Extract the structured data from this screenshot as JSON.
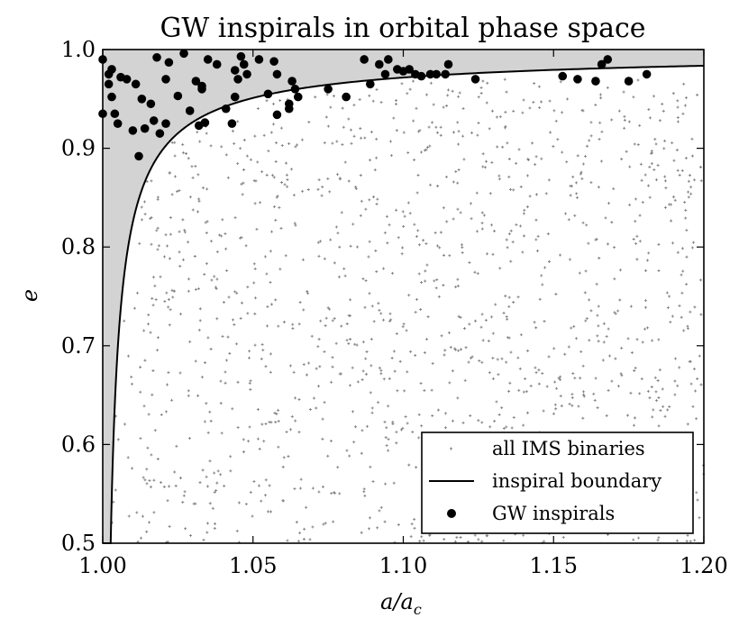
{
  "chart_data": {
    "type": "scatter",
    "title": "GW inspirals in orbital phase space",
    "xlabel": "a/a",
    "xlabel_sub": "c",
    "ylabel": "e",
    "xlim": [
      1.0,
      1.2
    ],
    "ylim": [
      0.5,
      1.0
    ],
    "xticks": [
      "1.00",
      "1.05",
      "1.10",
      "1.15",
      "1.20"
    ],
    "yticks": [
      "0.5",
      "0.6",
      "0.7",
      "0.8",
      "0.9",
      "1.0"
    ],
    "legend_position": "lower-right",
    "colors": {
      "ims": "#808080",
      "boundary": "#000000",
      "gw": "#000000",
      "shade": "#d3d3d3"
    },
    "series": [
      {
        "name": "all IMS binaries",
        "kind": "scatter-small",
        "count_approx": 1400,
        "x_range": [
          1.0,
          1.2
        ],
        "y_range": [
          0.5,
          0.97
        ]
      },
      {
        "name": "inspiral boundary",
        "kind": "line",
        "formula": "e = 1 - 0.0046/(x-1)^0.79",
        "x_start": 1.0001
      },
      {
        "name": "GW inspirals",
        "kind": "scatter-large",
        "points": [
          [
            1.0,
            0.99
          ],
          [
            1.0,
            0.935
          ],
          [
            1.002,
            0.965
          ],
          [
            1.002,
            0.975
          ],
          [
            1.003,
            0.98
          ],
          [
            1.003,
            0.952
          ],
          [
            1.004,
            0.935
          ],
          [
            1.005,
            0.925
          ],
          [
            1.006,
            0.972
          ],
          [
            1.008,
            0.97
          ],
          [
            1.01,
            0.918
          ],
          [
            1.011,
            0.965
          ],
          [
            1.012,
            0.892
          ],
          [
            1.013,
            0.95
          ],
          [
            1.014,
            0.92
          ],
          [
            1.016,
            0.945
          ],
          [
            1.017,
            0.928
          ],
          [
            1.018,
            0.992
          ],
          [
            1.019,
            0.915
          ],
          [
            1.021,
            0.97
          ],
          [
            1.021,
            0.925
          ],
          [
            1.022,
            0.987
          ],
          [
            1.025,
            0.953
          ],
          [
            1.027,
            0.996
          ],
          [
            1.029,
            0.938
          ],
          [
            1.031,
            0.968
          ],
          [
            1.032,
            0.923
          ],
          [
            1.033,
            0.963
          ],
          [
            1.033,
            0.96
          ],
          [
            1.034,
            0.926
          ],
          [
            1.035,
            0.99
          ],
          [
            1.038,
            0.985
          ],
          [
            1.041,
            0.94
          ],
          [
            1.043,
            0.925
          ],
          [
            1.044,
            0.952
          ],
          [
            1.044,
            0.979
          ],
          [
            1.045,
            0.97
          ],
          [
            1.046,
            0.993
          ],
          [
            1.047,
            0.985
          ],
          [
            1.048,
            0.975
          ],
          [
            1.052,
            0.99
          ],
          [
            1.055,
            0.955
          ],
          [
            1.057,
            0.988
          ],
          [
            1.058,
            0.975
          ],
          [
            1.058,
            0.934
          ],
          [
            1.062,
            0.94
          ],
          [
            1.062,
            0.945
          ],
          [
            1.063,
            0.968
          ],
          [
            1.064,
            0.96
          ],
          [
            1.065,
            0.952
          ],
          [
            1.075,
            0.96
          ],
          [
            1.081,
            0.952
          ],
          [
            1.087,
            0.99
          ],
          [
            1.089,
            0.965
          ],
          [
            1.092,
            0.985
          ],
          [
            1.094,
            0.975
          ],
          [
            1.095,
            0.99
          ],
          [
            1.098,
            0.98
          ],
          [
            1.1,
            0.978
          ],
          [
            1.102,
            0.98
          ],
          [
            1.104,
            0.975
          ],
          [
            1.106,
            0.973
          ],
          [
            1.109,
            0.975
          ],
          [
            1.111,
            0.975
          ],
          [
            1.114,
            0.975
          ],
          [
            1.115,
            0.985
          ],
          [
            1.124,
            0.97
          ],
          [
            1.153,
            0.973
          ],
          [
            1.158,
            0.97
          ],
          [
            1.164,
            0.968
          ],
          [
            1.166,
            0.985
          ],
          [
            1.168,
            0.99
          ],
          [
            1.175,
            0.968
          ],
          [
            1.181,
            0.975
          ]
        ]
      }
    ]
  }
}
